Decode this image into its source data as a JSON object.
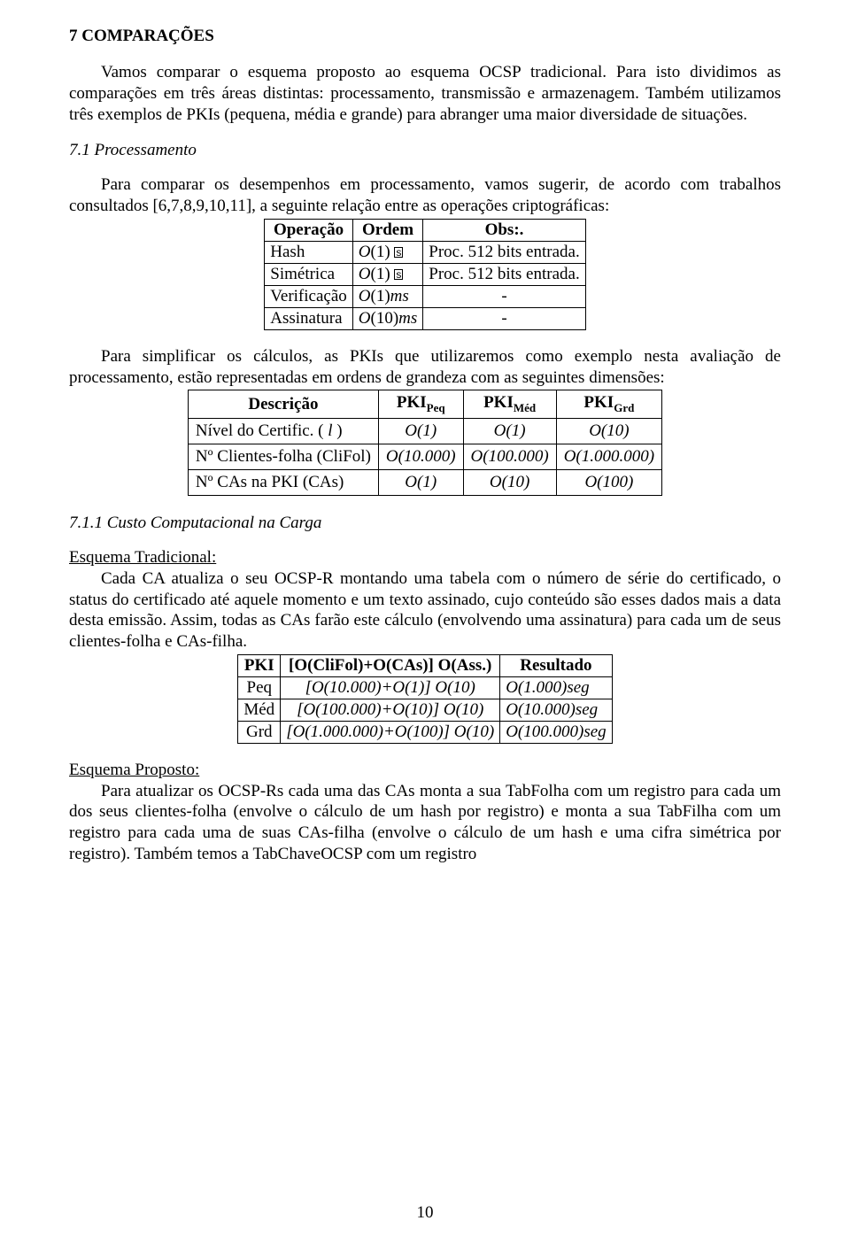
{
  "section": {
    "heading": "7 COMPARAÇÕES",
    "intro": "Vamos comparar o esquema proposto ao esquema OCSP tradicional. Para isto dividimos as comparações em três áreas distintas: processamento, transmissão e armazenagem. Também utilizamos três exemplos de PKIs (pequena, média e grande) para abranger uma maior diversidade de situações.",
    "sub1_heading": "7.1 Processamento",
    "sub1_intro": "Para comparar os desempenhos em processamento, vamos sugerir, de acordo com trabalhos consultados [6,7,8,9,10,11], a seguinte relação entre as operações criptográficas:",
    "table1": {
      "headers": [
        "Operação",
        "Ordem",
        "Obs:."
      ],
      "rows": [
        {
          "op": "Hash",
          "ordem_html": "<span class=\"i\">O</span>(1) <span class=\"micro-box\">s</span>",
          "obs": "Proc. 512 bits entrada."
        },
        {
          "op": "Simétrica",
          "ordem_html": "<span class=\"i\">O</span>(1) <span class=\"micro-box\">s</span>",
          "obs": "Proc. 512 bits entrada."
        },
        {
          "op": "Verificação",
          "ordem_html": "<span class=\"i\">O</span>(1)<span class=\"i\">ms</span>",
          "obs": "-"
        },
        {
          "op": "Assinatura",
          "ordem_html": "<span class=\"i\">O</span>(10)<span class=\"i\">ms</span>",
          "obs": "-"
        }
      ]
    },
    "para2": "Para simplificar os cálculos, as PKIs que utilizaremos como exemplo nesta avaliação de processamento, estão representadas em ordens de grandeza com as seguintes dimensões:",
    "table2": {
      "headers_html": [
        "Descrição",
        "PKI<span class=\"sub\">Peq</span>",
        "PKI<span class=\"sub\">Méd</span>",
        "PKI<span class=\"sub\">Grd</span>"
      ],
      "rows": [
        {
          "label_html": "Nível do Certific. (<span class=\"i\"> l </span>)",
          "peq": "O(1)",
          "med": "O(1)",
          "grd": "O(10)"
        },
        {
          "label_html": "Nº Clientes-folha (CliFol)",
          "peq": "O(10.000)",
          "med": "O(100.000)",
          "grd": "O(1.000.000)"
        },
        {
          "label_html": "Nº CAs na PKI (CAs)",
          "peq": "O(1)",
          "med": "O(10)",
          "grd": "O(100)"
        }
      ]
    },
    "sub11_heading": "7.1.1 Custo Computacional na Carga",
    "trad_label": "Esquema Tradicional:",
    "trad_para": "Cada CA atualiza o seu OCSP-R montando uma tabela com o número de série do certificado, o status do certificado até aquele momento e um texto assinado, cujo conteúdo são esses dados mais a data desta emissão. Assim, todas as CAs farão este cálculo (envolvendo uma assinatura) para cada um de seus clientes-folha e CAs-filha.",
    "table3": {
      "headers": [
        "PKI",
        "[O(CliFol)+O(CAs)] O(Ass.)",
        "Resultado"
      ],
      "rows": [
        {
          "pki": "Peq",
          "formula": "[O(10.000)+O(1)] O(10)",
          "res": "O(1.000)seg"
        },
        {
          "pki": "Méd",
          "formula": "[O(100.000)+O(10)] O(10)",
          "res": "O(10.000)seg"
        },
        {
          "pki": "Grd",
          "formula": "[O(1.000.000)+O(100)] O(10)",
          "res": "O(100.000)seg"
        }
      ]
    },
    "prop_label": "Esquema Proposto:",
    "prop_para": "Para atualizar os OCSP-Rs cada uma das CAs monta a sua TabFolha com um registro para cada um dos seus clientes-folha (envolve o cálculo de um hash por registro) e monta a sua TabFilha com um registro para cada uma de suas CAs-filha (envolve o cálculo de um hash e uma cifra simétrica por registro). Também temos a TabChaveOCSP com um registro"
  },
  "page_number": "10"
}
